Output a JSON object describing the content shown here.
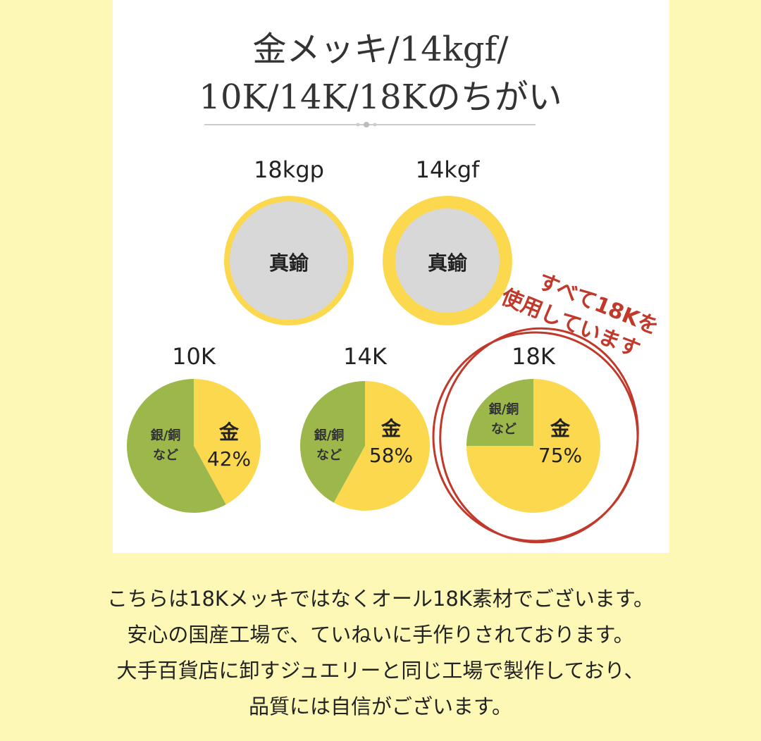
{
  "title_line1": "金メッキ/14kgf/",
  "title_line2": "10K/14K/18Kのちがい",
  "plated": [
    {
      "label": "18kgp",
      "core": "真鍮",
      "core_color": "#d8d8d8",
      "ring_color": "#fbd84e"
    },
    {
      "label": "14kgf",
      "core": "真鍮",
      "core_color": "#d8d8d8",
      "ring_color": "#fbd84e"
    }
  ],
  "chart_data": {
    "type": "pie",
    "charts": [
      {
        "title": "10K",
        "slices": [
          {
            "label": "金",
            "value": 42,
            "value_label": "42%"
          },
          {
            "label": "銀/銅\nなど",
            "value": 58
          }
        ]
      },
      {
        "title": "14K",
        "slices": [
          {
            "label": "金",
            "value": 58,
            "value_label": "58%"
          },
          {
            "label": "銀/銅\nなど",
            "value": 42
          }
        ]
      },
      {
        "title": "18K",
        "slices": [
          {
            "label": "金",
            "value": 75,
            "value_label": "75%"
          },
          {
            "label": "銀/銅\nなど",
            "value": 25
          }
        ]
      }
    ],
    "colors": {
      "gold": "#fbd84e",
      "other": "#9cb84a"
    }
  },
  "other_label_1": "銀/銅",
  "other_label_2": "など",
  "gold_label": "金",
  "stamp": {
    "line1": "すべて18Kを",
    "line2": "使用しています",
    "color": "#c0392b"
  },
  "caption": [
    "こちらは18Kメッキではなくオール18K素材でございます。",
    "安心の国産工場で、ていねいに手作りされております。",
    "大手百貨店に卸すジュエリーと同じ工場で製作しており、",
    "品質には自信がございます。"
  ]
}
